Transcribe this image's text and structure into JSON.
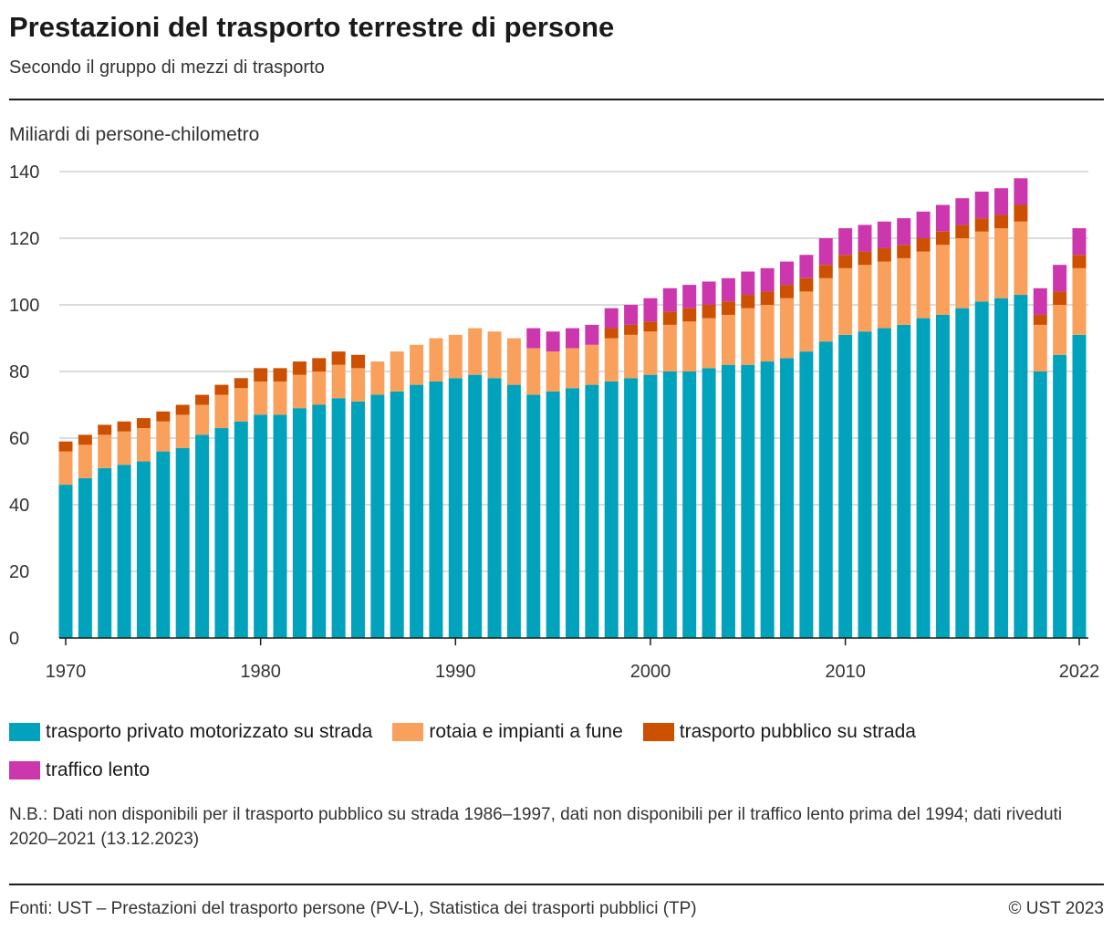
{
  "title": "Prestazioni del trasporto terrestre di persone",
  "subtitle": "Secondo il gruppo di mezzi di trasporto",
  "note": "N.B.: Dati non disponibili per il trasporto pubblico su strada 1986–1997, dati non disponibili per il traffico lento prima del 1994; dati riveduti 2020–2021 (13.12.2023)",
  "source": "Fonti: UST – Prestazioni del trasporto persone (PV-L), Statistica dei trasporti pubblici (TP)",
  "copyright": "© UST 2023",
  "chart_data": {
    "type": "bar",
    "stacked": true,
    "ylabel": "Miliardi di persone-chilometro",
    "ylim": [
      0,
      140
    ],
    "yticks": [
      0,
      20,
      40,
      60,
      80,
      100,
      120,
      140
    ],
    "xticks": [
      "1970",
      "1980",
      "1990",
      "2000",
      "2010",
      "2022"
    ],
    "grid": true,
    "legend": "bottom",
    "categories": [
      1970,
      1971,
      1972,
      1973,
      1974,
      1975,
      1976,
      1977,
      1978,
      1979,
      1980,
      1981,
      1982,
      1983,
      1984,
      1985,
      1986,
      1987,
      1988,
      1989,
      1990,
      1991,
      1992,
      1993,
      1994,
      1995,
      1996,
      1997,
      1998,
      1999,
      2000,
      2001,
      2002,
      2003,
      2004,
      2005,
      2006,
      2007,
      2008,
      2009,
      2010,
      2011,
      2012,
      2013,
      2014,
      2015,
      2016,
      2017,
      2018,
      2019,
      2020,
      2021,
      2022
    ],
    "series": [
      {
        "name": "trasporto privato motorizzato su strada",
        "color": "#00a3bb",
        "values": [
          46,
          48,
          51,
          52,
          53,
          56,
          57,
          61,
          63,
          65,
          67,
          67,
          69,
          70,
          72,
          71,
          73,
          74,
          76,
          77,
          78,
          79,
          78,
          76,
          73,
          74,
          75,
          76,
          77,
          78,
          79,
          80,
          80,
          81,
          82,
          82,
          83,
          84,
          86,
          89,
          91,
          92,
          93,
          94,
          96,
          97,
          99,
          101,
          102,
          103,
          80,
          85,
          91
        ]
      },
      {
        "name": "rotaia e impianti a fune",
        "color": "#f9a05c",
        "values": [
          10,
          10,
          10,
          10,
          10,
          9,
          10,
          9,
          10,
          10,
          10,
          10,
          10,
          10,
          10,
          10,
          10,
          12,
          12,
          13,
          13,
          14,
          14,
          14,
          14,
          12,
          12,
          12,
          13,
          13,
          13,
          14,
          15,
          15,
          15,
          17,
          17,
          18,
          18,
          19,
          20,
          20,
          20,
          20,
          20,
          21,
          21,
          21,
          21,
          22,
          14,
          15,
          20
        ]
      },
      {
        "name": "trasporto pubblico su strada",
        "color": "#cc5000",
        "values": [
          3,
          3,
          3,
          3,
          3,
          3,
          3,
          3,
          3,
          3,
          4,
          4,
          4,
          4,
          4,
          4,
          0,
          0,
          0,
          0,
          0,
          0,
          0,
          0,
          0,
          0,
          0,
          0,
          3,
          3,
          3,
          4,
          4,
          4,
          4,
          4,
          4,
          4,
          4,
          4,
          4,
          4,
          4,
          4,
          4,
          4,
          4,
          4,
          4,
          5,
          3,
          4,
          4
        ]
      },
      {
        "name": "traffico lento",
        "color": "#cc37ad",
        "values": [
          0,
          0,
          0,
          0,
          0,
          0,
          0,
          0,
          0,
          0,
          0,
          0,
          0,
          0,
          0,
          0,
          0,
          0,
          0,
          0,
          0,
          0,
          0,
          0,
          6,
          6,
          6,
          6,
          6,
          6,
          7,
          7,
          7,
          7,
          7,
          7,
          7,
          7,
          7,
          8,
          8,
          8,
          8,
          8,
          8,
          8,
          8,
          8,
          8,
          8,
          8,
          8,
          8
        ]
      }
    ]
  }
}
